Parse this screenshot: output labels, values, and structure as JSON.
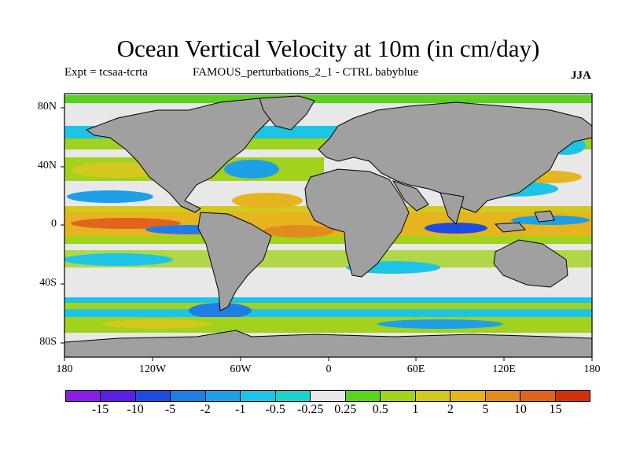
{
  "title": "Ocean Vertical Velocity at 10m (in cm/day)",
  "experiment": "Expt = tcsaa-tcrta",
  "run_label": "FAMOUS_perturbations_2_1 - CTRL babyblue",
  "season": "JJA",
  "map": {
    "type": "filled-contour-map",
    "projection": "equirectangular",
    "lon_range": [
      -180,
      180
    ],
    "lat_range": [
      -90,
      90
    ],
    "land_color": "#a0a0a0",
    "coastline_color": "#000000",
    "x_ticks": [
      "180",
      "120W",
      "60W",
      "0",
      "60E",
      "120E",
      "180"
    ],
    "y_ticks": [
      "80N",
      "40N",
      "0",
      "40S",
      "80S"
    ]
  },
  "colorbar": {
    "labels": [
      "-15",
      "-10",
      "-5",
      "-2",
      "-1",
      "-0.5",
      "-0.25",
      "0.25",
      "0.5",
      "1",
      "2",
      "5",
      "10",
      "15"
    ],
    "colors": [
      "#8a1ee6",
      "#5a1ee6",
      "#1e4ce0",
      "#1e7ee6",
      "#1ea0e6",
      "#1ec4e6",
      "#1ed2c8",
      "#e8e8e8",
      "#5ad21e",
      "#a0d21e",
      "#d2c81e",
      "#e6b41e",
      "#e08c1e",
      "#e0641e",
      "#d2320a"
    ]
  }
}
